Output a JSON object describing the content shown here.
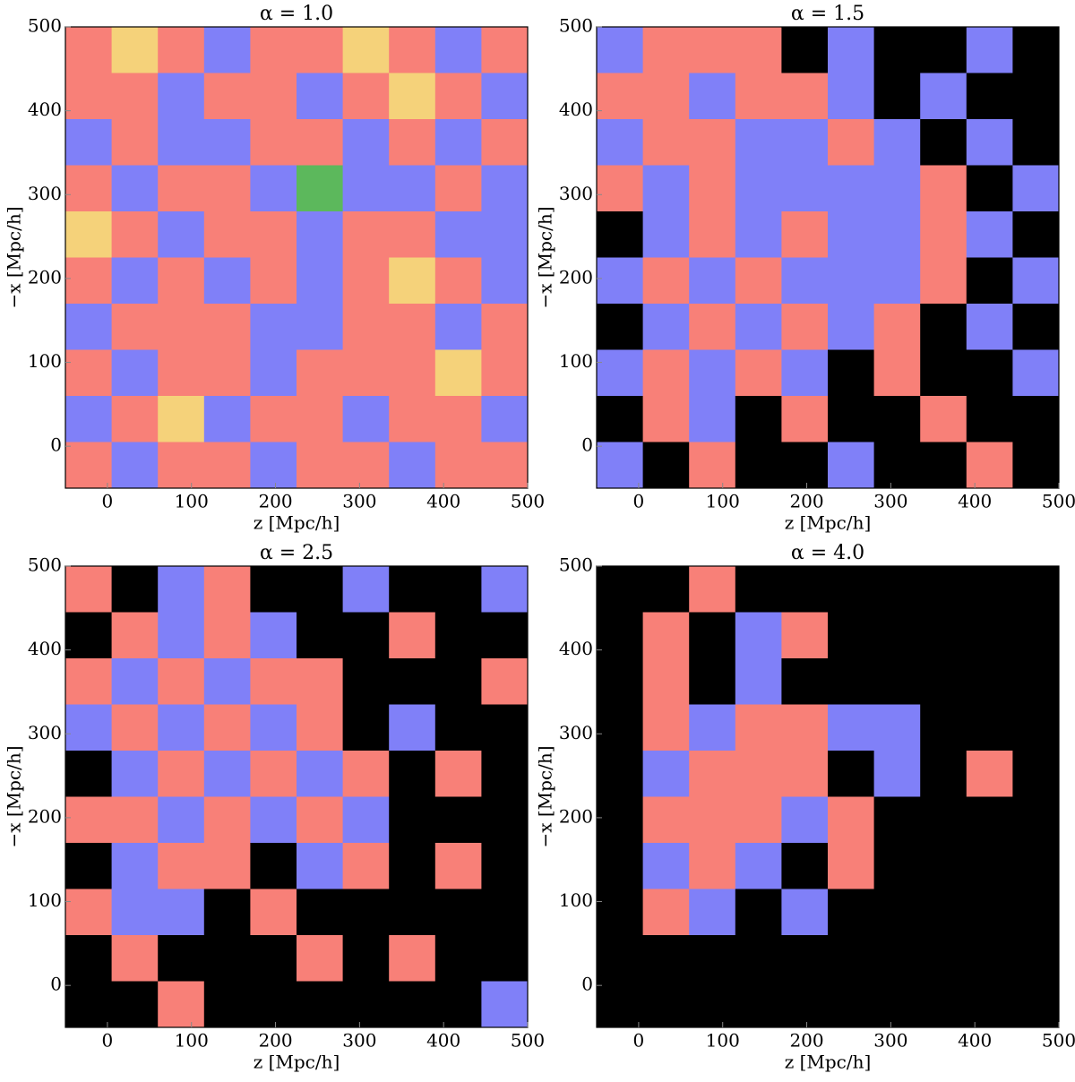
{
  "chart_data": [
    {
      "type": "heatmap",
      "title": "α = 1.0",
      "xlabel": "z [Mpc/h]",
      "ylabel": "−x [Mpc/h]",
      "xlim": [
        -50,
        500
      ],
      "ylim": [
        -50,
        500
      ],
      "xticks": [
        0,
        100,
        200,
        300,
        400,
        500
      ],
      "yticks": [
        0,
        100,
        200,
        300,
        400,
        500
      ],
      "colors": [
        "#000000",
        "#8080f8",
        "#f88078",
        "#5cb85c",
        "#f5d27a"
      ],
      "z": [
        [
          2,
          4,
          2,
          1,
          2,
          2,
          4,
          2,
          1,
          2
        ],
        [
          2,
          2,
          1,
          2,
          2,
          1,
          2,
          4,
          2,
          1
        ],
        [
          1,
          2,
          1,
          1,
          2,
          2,
          1,
          2,
          1,
          2
        ],
        [
          2,
          1,
          2,
          2,
          1,
          3,
          1,
          1,
          2,
          1
        ],
        [
          4,
          2,
          1,
          2,
          2,
          1,
          2,
          2,
          1,
          1
        ],
        [
          2,
          1,
          2,
          1,
          2,
          1,
          2,
          4,
          2,
          1
        ],
        [
          1,
          2,
          2,
          2,
          1,
          1,
          2,
          2,
          1,
          2
        ],
        [
          2,
          1,
          2,
          2,
          1,
          2,
          2,
          2,
          4,
          2
        ],
        [
          1,
          2,
          4,
          1,
          2,
          2,
          1,
          2,
          2,
          1
        ],
        [
          2,
          1,
          2,
          2,
          1,
          2,
          2,
          1,
          2,
          2
        ]
      ]
    },
    {
      "type": "heatmap",
      "title": "α = 1.5",
      "xlabel": "z [Mpc/h]",
      "ylabel": "−x [Mpc/h]",
      "xlim": [
        -50,
        500
      ],
      "ylim": [
        -50,
        500
      ],
      "xticks": [
        0,
        100,
        200,
        300,
        400,
        500
      ],
      "yticks": [
        0,
        100,
        200,
        300,
        400,
        500
      ],
      "colors": [
        "#000000",
        "#8080f8",
        "#f88078",
        "#5cb85c",
        "#f5d27a"
      ],
      "z": [
        [
          1,
          2,
          2,
          2,
          0,
          1,
          0,
          0,
          1,
          0
        ],
        [
          2,
          2,
          1,
          2,
          2,
          1,
          0,
          1,
          0,
          0
        ],
        [
          1,
          2,
          2,
          1,
          1,
          2,
          1,
          0,
          1,
          0
        ],
        [
          2,
          1,
          2,
          1,
          1,
          1,
          1,
          2,
          0,
          1
        ],
        [
          0,
          1,
          2,
          1,
          2,
          1,
          1,
          2,
          1,
          0
        ],
        [
          1,
          2,
          1,
          2,
          1,
          1,
          1,
          2,
          0,
          1
        ],
        [
          0,
          1,
          2,
          1,
          2,
          1,
          2,
          0,
          1,
          0
        ],
        [
          1,
          2,
          1,
          2,
          1,
          0,
          2,
          0,
          0,
          1
        ],
        [
          0,
          2,
          1,
          0,
          2,
          0,
          0,
          2,
          0,
          0
        ],
        [
          1,
          0,
          2,
          0,
          0,
          1,
          0,
          0,
          2,
          0
        ]
      ]
    },
    {
      "type": "heatmap",
      "title": "α = 2.5",
      "xlabel": "z [Mpc/h]",
      "ylabel": "−x [Mpc/h]",
      "xlim": [
        -50,
        500
      ],
      "ylim": [
        -50,
        500
      ],
      "xticks": [
        0,
        100,
        200,
        300,
        400,
        500
      ],
      "yticks": [
        0,
        100,
        200,
        300,
        400,
        500
      ],
      "colors": [
        "#000000",
        "#8080f8",
        "#f88078",
        "#5cb85c",
        "#f5d27a"
      ],
      "z": [
        [
          2,
          0,
          1,
          2,
          0,
          0,
          1,
          0,
          0,
          1
        ],
        [
          0,
          2,
          1,
          2,
          1,
          0,
          0,
          2,
          0,
          0
        ],
        [
          2,
          1,
          2,
          1,
          2,
          2,
          0,
          0,
          0,
          2
        ],
        [
          1,
          2,
          1,
          2,
          1,
          2,
          0,
          1,
          0,
          0
        ],
        [
          0,
          1,
          2,
          1,
          2,
          1,
          2,
          0,
          2,
          0
        ],
        [
          2,
          2,
          1,
          2,
          1,
          2,
          1,
          0,
          0,
          0
        ],
        [
          0,
          1,
          2,
          2,
          0,
          1,
          2,
          0,
          2,
          0
        ],
        [
          2,
          1,
          1,
          0,
          2,
          0,
          0,
          0,
          0,
          0
        ],
        [
          0,
          2,
          0,
          0,
          0,
          2,
          0,
          2,
          0,
          0
        ],
        [
          0,
          0,
          2,
          0,
          0,
          0,
          0,
          0,
          0,
          1
        ]
      ]
    },
    {
      "type": "heatmap",
      "title": "α = 4.0",
      "xlabel": "z [Mpc/h]",
      "ylabel": "−x [Mpc/h]",
      "xlim": [
        -50,
        500
      ],
      "ylim": [
        -50,
        500
      ],
      "xticks": [
        0,
        100,
        200,
        300,
        400,
        500
      ],
      "yticks": [
        0,
        100,
        200,
        300,
        400,
        500
      ],
      "colors": [
        "#000000",
        "#8080f8",
        "#f88078",
        "#5cb85c",
        "#f5d27a"
      ],
      "z": [
        [
          0,
          0,
          2,
          0,
          0,
          0,
          0,
          0,
          0,
          0
        ],
        [
          0,
          2,
          0,
          1,
          2,
          0,
          0,
          0,
          0,
          0
        ],
        [
          0,
          2,
          0,
          1,
          0,
          0,
          0,
          0,
          0,
          0
        ],
        [
          0,
          2,
          1,
          2,
          2,
          1,
          1,
          0,
          0,
          0
        ],
        [
          0,
          1,
          2,
          2,
          2,
          0,
          1,
          0,
          2,
          0
        ],
        [
          0,
          2,
          2,
          2,
          1,
          2,
          0,
          0,
          0,
          0
        ],
        [
          0,
          1,
          2,
          1,
          0,
          2,
          0,
          0,
          0,
          0
        ],
        [
          0,
          2,
          1,
          0,
          1,
          0,
          0,
          0,
          0,
          0
        ],
        [
          0,
          0,
          0,
          0,
          0,
          0,
          0,
          0,
          0,
          0
        ],
        [
          0,
          0,
          0,
          0,
          0,
          0,
          0,
          0,
          0,
          0
        ]
      ]
    }
  ]
}
